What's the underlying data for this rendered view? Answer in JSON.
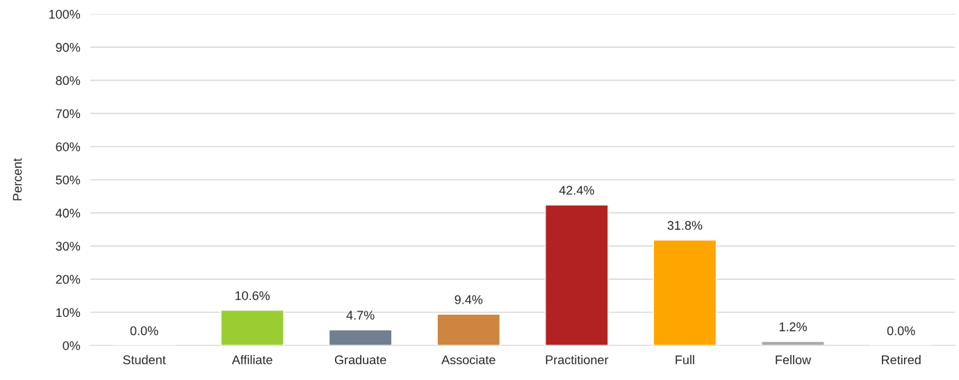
{
  "chart_data": {
    "type": "bar",
    "ylabel": "Percent",
    "categories": [
      "Student",
      "Affiliate",
      "Graduate",
      "Associate",
      "Practitioner",
      "Full",
      "Fellow",
      "Retired"
    ],
    "values": [
      0.0,
      10.6,
      4.7,
      9.4,
      42.4,
      31.8,
      1.2,
      0.0
    ],
    "value_labels": [
      "0.0%",
      "10.6%",
      "4.7%",
      "9.4%",
      "42.4%",
      "31.8%",
      "1.2%",
      "0.0%"
    ],
    "colors": [
      null,
      "#9acd32",
      "#708090",
      "#cd853f",
      "#b22222",
      "#ffa500",
      "#a9a9a9",
      null
    ],
    "ylim": [
      0,
      100
    ],
    "yticks": [
      {
        "value": 0,
        "label": "0%"
      },
      {
        "value": 10,
        "label": "10%"
      },
      {
        "value": 20,
        "label": "20%"
      },
      {
        "value": 30,
        "label": "30%"
      },
      {
        "value": 40,
        "label": "40%"
      },
      {
        "value": 50,
        "label": "50%"
      },
      {
        "value": 60,
        "label": "60%"
      },
      {
        "value": 70,
        "label": "70%"
      },
      {
        "value": 80,
        "label": "80%"
      },
      {
        "value": 90,
        "label": "90%"
      },
      {
        "value": 100,
        "label": "100%"
      }
    ],
    "grid": "y",
    "legend": false
  }
}
